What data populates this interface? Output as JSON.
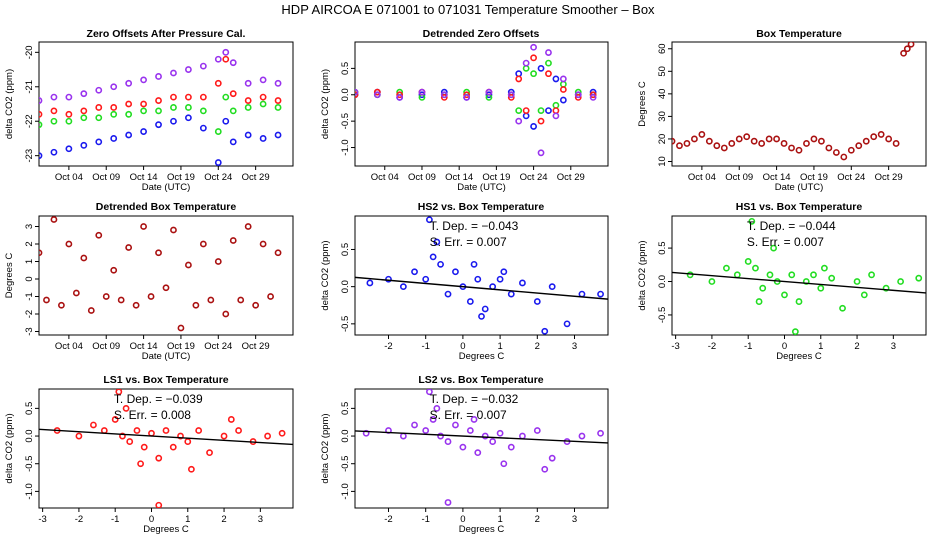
{
  "title": "HDP    AIRCOA E    071001 to 071031    Temperature Smoother – Box",
  "colors": {
    "hs1": "#22dd22",
    "hs2": "#1a1aee",
    "ls1": "#ff1a1a",
    "ls2": "#9933ee",
    "box": "#aa1111",
    "fit": "#000000"
  },
  "chart_data": [
    {
      "type": "scatter",
      "title": "Zero Offsets After Pressure Cal.",
      "xlabel": "Date (UTC)",
      "ylabel": "delta CO2 (ppm)",
      "xlim": [
        0,
        34
      ],
      "ylim": [
        -23.3,
        -19.7
      ],
      "x_tick_values": [
        4,
        9,
        14,
        19,
        24,
        29
      ],
      "x_tick_labels": [
        "Oct 04",
        "Oct 09",
        "Oct 14",
        "Oct 19",
        "Oct 24",
        "Oct 29"
      ],
      "y_tick_values": [
        -23,
        -22,
        -21,
        -20
      ],
      "y_tick_labels": [
        "-23",
        "-22",
        "-21",
        "-20"
      ],
      "series": [
        {
          "name": "LS2",
          "color_key": "ls2",
          "x": [
            0,
            2,
            4,
            6,
            8,
            10,
            12,
            14,
            16,
            18,
            20,
            22,
            24,
            25,
            26,
            28,
            30,
            32
          ],
          "y": [
            -21.4,
            -21.3,
            -21.3,
            -21.2,
            -21.1,
            -21.0,
            -20.9,
            -20.8,
            -20.7,
            -20.6,
            -20.5,
            -20.4,
            -20.2,
            -20.0,
            -20.3,
            -20.9,
            -20.8,
            -20.9
          ]
        },
        {
          "name": "LS1",
          "color_key": "ls1",
          "x": [
            0,
            2,
            4,
            6,
            8,
            10,
            12,
            14,
            16,
            18,
            20,
            22,
            24,
            25,
            26,
            28,
            30,
            32
          ],
          "y": [
            -21.8,
            -21.7,
            -21.8,
            -21.7,
            -21.6,
            -21.6,
            -21.5,
            -21.5,
            -21.4,
            -21.3,
            -21.3,
            -21.3,
            -20.9,
            -20.2,
            -21.2,
            -21.4,
            -21.3,
            -21.4
          ]
        },
        {
          "name": "HS1",
          "color_key": "hs1",
          "x": [
            0,
            2,
            4,
            6,
            8,
            10,
            12,
            14,
            16,
            18,
            20,
            22,
            24,
            25,
            26,
            28,
            30,
            32
          ],
          "y": [
            -22.1,
            -22.0,
            -22.0,
            -21.9,
            -21.9,
            -21.8,
            -21.8,
            -21.7,
            -21.7,
            -21.6,
            -21.6,
            -21.7,
            -22.3,
            -21.3,
            -21.7,
            -21.6,
            -21.5,
            -21.6
          ]
        },
        {
          "name": "HS2",
          "color_key": "hs2",
          "x": [
            0,
            2,
            4,
            6,
            8,
            10,
            12,
            14,
            16,
            18,
            20,
            22,
            24,
            25,
            26,
            28,
            30,
            32
          ],
          "y": [
            -23.0,
            -22.9,
            -22.8,
            -22.7,
            -22.6,
            -22.5,
            -22.4,
            -22.3,
            -22.1,
            -22.0,
            -21.9,
            -22.2,
            -23.2,
            -22.0,
            -22.6,
            -22.4,
            -22.5,
            -22.4
          ]
        }
      ]
    },
    {
      "type": "scatter",
      "title": "Detrended Zero Offsets",
      "xlabel": "Date (UTC)",
      "ylabel": "delta CO2 (ppm)",
      "xlim": [
        0,
        34
      ],
      "ylim": [
        -1.35,
        1.0
      ],
      "x_tick_values": [
        4,
        9,
        14,
        19,
        24,
        29
      ],
      "x_tick_labels": [
        "Oct 04",
        "Oct 09",
        "Oct 14",
        "Oct 19",
        "Oct 24",
        "Oct 29"
      ],
      "y_tick_values": [
        -1.0,
        -0.5,
        0.0,
        0.5
      ],
      "y_tick_labels": [
        "-1.0",
        "-0.5",
        "0.0",
        "0.5"
      ],
      "series": [
        {
          "name": "HS2",
          "color_key": "hs2",
          "x": [
            0,
            3,
            6,
            9,
            12,
            15,
            18,
            21,
            22,
            23,
            24,
            25,
            26,
            27,
            28,
            30,
            32
          ],
          "y": [
            0.0,
            0.05,
            -0.05,
            0.0,
            0.05,
            -0.05,
            0.0,
            0.05,
            0.4,
            -0.4,
            -0.6,
            0.5,
            -0.3,
            0.3,
            -0.1,
            0.0,
            0.05
          ]
        },
        {
          "name": "HS1",
          "color_key": "hs1",
          "x": [
            0,
            3,
            6,
            9,
            12,
            15,
            18,
            21,
            22,
            23,
            24,
            25,
            26,
            27,
            28,
            30,
            32
          ],
          "y": [
            0.05,
            0.0,
            0.05,
            -0.05,
            0.0,
            0.05,
            -0.05,
            0.0,
            -0.3,
            0.5,
            0.4,
            -0.3,
            0.6,
            -0.2,
            0.2,
            0.05,
            0.0
          ]
        },
        {
          "name": "LS1",
          "color_key": "ls1",
          "x": [
            0,
            3,
            6,
            9,
            12,
            15,
            18,
            21,
            22,
            23,
            24,
            25,
            26,
            27,
            28,
            30,
            32
          ],
          "y": [
            0.0,
            0.05,
            0.0,
            0.05,
            -0.05,
            0.0,
            0.05,
            -0.05,
            0.3,
            -0.3,
            0.7,
            -0.5,
            0.4,
            -0.3,
            0.1,
            -0.05,
            0.0
          ]
        },
        {
          "name": "LS2",
          "color_key": "ls2",
          "x": [
            0,
            3,
            6,
            9,
            12,
            15,
            18,
            21,
            22,
            23,
            24,
            25,
            26,
            27,
            28,
            30,
            32
          ],
          "y": [
            0.05,
            0.0,
            -0.05,
            0.05,
            0.0,
            -0.05,
            0.05,
            0.0,
            -0.5,
            0.6,
            0.9,
            -1.1,
            0.8,
            -0.4,
            0.3,
            0.0,
            -0.05
          ]
        }
      ]
    },
    {
      "type": "scatter",
      "title": "Box Temperature",
      "xlabel": "Date (UTC)",
      "ylabel": "Degrees C",
      "xlim": [
        0,
        34
      ],
      "ylim": [
        8,
        63
      ],
      "x_tick_values": [
        4,
        9,
        14,
        19,
        24,
        29
      ],
      "x_tick_labels": [
        "Oct 04",
        "Oct 09",
        "Oct 14",
        "Oct 19",
        "Oct 24",
        "Oct 29"
      ],
      "y_tick_values": [
        10,
        20,
        30,
        40,
        50,
        60
      ],
      "y_tick_labels": [
        "10",
        "20",
        "30",
        "40",
        "50",
        "60"
      ],
      "series": [
        {
          "name": "Box",
          "color_key": "box",
          "x": [
            0,
            1,
            2,
            3,
            4,
            5,
            6,
            7,
            8,
            9,
            10,
            11,
            12,
            13,
            14,
            15,
            16,
            17,
            18,
            19,
            20,
            21,
            22,
            23,
            24,
            25,
            26,
            27,
            28,
            29,
            30,
            31,
            31.5,
            32
          ],
          "y": [
            19,
            17,
            18,
            20,
            22,
            19,
            17,
            16,
            18,
            20,
            21,
            19,
            18,
            20,
            20,
            18,
            16,
            15,
            18,
            20,
            19,
            16,
            14,
            12,
            15,
            17,
            19,
            21,
            22,
            20,
            18,
            58,
            60,
            62
          ]
        }
      ]
    },
    {
      "type": "scatter",
      "title": "Detrended Box Temperature",
      "xlabel": "Date (UTC)",
      "ylabel": "Degrees C",
      "xlim": [
        0,
        34
      ],
      "ylim": [
        -3.2,
        3.6
      ],
      "x_tick_values": [
        4,
        9,
        14,
        19,
        24,
        29
      ],
      "x_tick_labels": [
        "Oct 04",
        "Oct 09",
        "Oct 14",
        "Oct 19",
        "Oct 24",
        "Oct 29"
      ],
      "y_tick_values": [
        -3,
        -2,
        -1,
        0,
        1,
        2,
        3
      ],
      "y_tick_labels": [
        "-3",
        "-2",
        "-1",
        "0",
        "1",
        "2",
        "3"
      ],
      "series": [
        {
          "name": "Box",
          "color_key": "box",
          "x": [
            0,
            1,
            2,
            3,
            4,
            5,
            6,
            7,
            8,
            9,
            10,
            11,
            12,
            13,
            14,
            15,
            16,
            17,
            18,
            19,
            20,
            21,
            22,
            23,
            24,
            25,
            26,
            27,
            28,
            29,
            30,
            31,
            32
          ],
          "y": [
            1.5,
            -1.2,
            3.4,
            -1.5,
            2.0,
            -0.8,
            1.2,
            -1.8,
            2.5,
            -1.0,
            0.5,
            -1.2,
            1.8,
            -1.5,
            3.0,
            -1.0,
            1.5,
            -0.5,
            2.8,
            -2.8,
            0.8,
            -1.5,
            2.0,
            -1.2,
            1.0,
            -2.0,
            2.2,
            -1.2,
            3.0,
            -1.5,
            2.0,
            -1.0,
            1.5
          ]
        }
      ]
    },
    {
      "type": "scatter",
      "title": "HS2 vs. Box Temperature",
      "xlabel": "Degrees C",
      "ylabel": "delta CO2 (ppm)",
      "xlim": [
        -2.9,
        3.9
      ],
      "ylim": [
        -0.65,
        0.95
      ],
      "x_tick_values": [
        -2,
        -1,
        0,
        1,
        2,
        3
      ],
      "x_tick_labels": [
        "-2",
        "-1",
        "0",
        "1",
        "2",
        "3"
      ],
      "y_tick_values": [
        -0.5,
        0.0,
        0.5
      ],
      "y_tick_labels": [
        "-0.5",
        "0.0",
        "0.5"
      ],
      "annotation": {
        "line1": "T. Dep. =  −0.043",
        "line2": "S. Err. =  0.007"
      },
      "fit": {
        "slope": -0.043,
        "intercept": 0.0
      },
      "series": [
        {
          "name": "HS2",
          "color_key": "hs2",
          "x": [
            -2.5,
            -2.0,
            -1.6,
            -1.3,
            -1.0,
            -0.8,
            -0.6,
            -0.4,
            -0.2,
            0.0,
            0.2,
            0.4,
            0.6,
            0.8,
            1.0,
            1.3,
            1.6,
            2.0,
            2.4,
            2.8,
            3.2,
            3.7,
            -0.9,
            -0.7,
            0.5,
            1.1,
            2.2,
            0.3
          ],
          "y": [
            0.05,
            0.1,
            0.0,
            0.2,
            0.1,
            0.4,
            0.3,
            -0.1,
            0.2,
            0.0,
            -0.2,
            0.1,
            -0.3,
            0.0,
            0.1,
            -0.1,
            0.05,
            -0.2,
            0.0,
            -0.5,
            -0.1,
            -0.1,
            0.9,
            0.6,
            -0.4,
            0.2,
            -0.6,
            0.3
          ]
        }
      ]
    },
    {
      "type": "scatter",
      "title": "HS1 vs. Box Temperature",
      "xlabel": "Degrees C",
      "ylabel": "delta CO2 (ppm)",
      "xlim": [
        -3.1,
        3.9
      ],
      "ylim": [
        -0.8,
        0.98
      ],
      "x_tick_values": [
        -3,
        -2,
        -1,
        0,
        1,
        2,
        3
      ],
      "x_tick_labels": [
        "-3",
        "-2",
        "-1",
        "0",
        "1",
        "2",
        "3"
      ],
      "y_tick_values": [
        -0.5,
        0.0,
        0.5
      ],
      "y_tick_labels": [
        "-0.5",
        "0.0",
        "0.5"
      ],
      "annotation": {
        "line1": "T. Dep. =  −0.044",
        "line2": "S. Err. =  0.007"
      },
      "fit": {
        "slope": -0.044,
        "intercept": 0.0
      },
      "series": [
        {
          "name": "HS1",
          "color_key": "hs1",
          "x": [
            -2.6,
            -2.0,
            -1.6,
            -1.3,
            -1.0,
            -0.8,
            -0.6,
            -0.4,
            -0.2,
            0.0,
            0.2,
            0.4,
            0.6,
            0.8,
            1.0,
            1.3,
            1.6,
            2.0,
            2.4,
            2.8,
            3.2,
            3.7,
            -0.9,
            -0.7,
            0.3,
            1.1,
            2.2,
            -0.3
          ],
          "y": [
            0.1,
            0.0,
            0.2,
            0.1,
            0.3,
            0.2,
            -0.1,
            0.1,
            0.0,
            -0.2,
            0.1,
            -0.3,
            0.0,
            0.1,
            -0.1,
            0.05,
            -0.4,
            0.0,
            0.1,
            -0.1,
            0.0,
            0.05,
            0.9,
            -0.3,
            -0.75,
            0.2,
            -0.2,
            0.5
          ]
        }
      ]
    },
    {
      "type": "scatter",
      "title": "LS1 vs. Box Temperature",
      "xlabel": "Degrees C",
      "ylabel": "delta CO2 (ppm)",
      "xlim": [
        -3.1,
        3.9
      ],
      "ylim": [
        -1.3,
        0.85
      ],
      "x_tick_values": [
        -3,
        -2,
        -1,
        0,
        1,
        2,
        3
      ],
      "x_tick_labels": [
        "-3",
        "-2",
        "-1",
        "0",
        "1",
        "2",
        "3"
      ],
      "y_tick_values": [
        -1.0,
        -0.5,
        0.0,
        0.5
      ],
      "y_tick_labels": [
        "-1.0",
        "-0.5",
        "0.0",
        "0.5"
      ],
      "annotation": {
        "line1": "T. Dep. =  −0.039",
        "line2": "S. Err. =  0.008"
      },
      "fit": {
        "slope": -0.039,
        "intercept": 0.0
      },
      "series": [
        {
          "name": "LS1",
          "color_key": "ls1",
          "x": [
            -2.6,
            -2.0,
            -1.6,
            -1.3,
            -1.0,
            -0.8,
            -0.6,
            -0.4,
            -0.2,
            0.0,
            0.2,
            0.4,
            0.6,
            0.8,
            1.0,
            1.3,
            1.6,
            2.0,
            2.4,
            2.8,
            3.2,
            3.6,
            -0.9,
            -0.7,
            0.2,
            1.1,
            2.2,
            -0.3
          ],
          "y": [
            0.1,
            0.0,
            0.2,
            0.1,
            0.3,
            0.0,
            -0.1,
            0.1,
            -0.2,
            0.05,
            -0.4,
            0.1,
            -0.2,
            0.0,
            -0.1,
            0.1,
            -0.3,
            0.0,
            0.1,
            -0.1,
            0.0,
            0.05,
            0.8,
            0.5,
            -1.25,
            -0.6,
            0.3,
            -0.5
          ]
        }
      ]
    },
    {
      "type": "scatter",
      "title": "LS2 vs. Box Temperature",
      "xlabel": "Degrees C",
      "ylabel": "delta CO2 (ppm)",
      "xlim": [
        -2.9,
        3.9
      ],
      "ylim": [
        -1.3,
        0.85
      ],
      "x_tick_values": [
        -2,
        -1,
        0,
        1,
        2,
        3
      ],
      "x_tick_labels": [
        "-2",
        "-1",
        "0",
        "1",
        "2",
        "3"
      ],
      "y_tick_values": [
        -1.0,
        -0.5,
        0.0,
        0.5
      ],
      "y_tick_labels": [
        "-1.0",
        "-0.5",
        "0.0",
        "0.5"
      ],
      "annotation": {
        "line1": "T. Dep. =  −0.032",
        "line2": "S. Err. =  0.007"
      },
      "fit": {
        "slope": -0.032,
        "intercept": 0.0
      },
      "series": [
        {
          "name": "LS2",
          "color_key": "ls2",
          "x": [
            -2.6,
            -2.0,
            -1.6,
            -1.3,
            -1.0,
            -0.8,
            -0.6,
            -0.4,
            -0.2,
            0.0,
            0.2,
            0.4,
            0.6,
            0.8,
            1.0,
            1.3,
            1.6,
            2.0,
            2.4,
            2.8,
            3.2,
            3.7,
            -0.9,
            -0.7,
            -0.4,
            1.1,
            2.2,
            0.3
          ],
          "y": [
            0.05,
            0.1,
            0.0,
            0.2,
            0.1,
            0.3,
            0.0,
            -0.1,
            0.2,
            -0.2,
            0.1,
            -0.3,
            0.0,
            -0.1,
            0.05,
            -0.2,
            0.0,
            0.1,
            -0.4,
            -0.1,
            0.0,
            0.05,
            0.8,
            0.5,
            -1.2,
            -0.5,
            -0.6,
            0.3
          ]
        }
      ]
    }
  ]
}
